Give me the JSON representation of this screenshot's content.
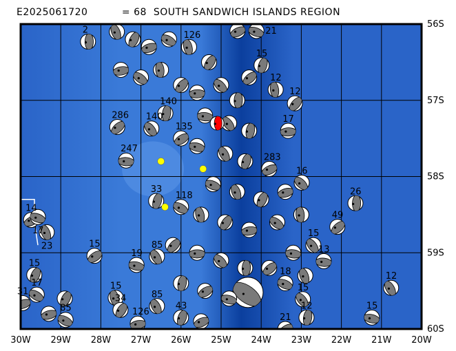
{
  "title": "E2025061720          = 68  SOUTH SANDWICH ISLANDS REGION",
  "map": {
    "lon_range": [
      -30,
      -20
    ],
    "lat_range": [
      -60,
      -56
    ],
    "x_ticks": [
      "30W",
      "29W",
      "28W",
      "27W",
      "26W",
      "25W",
      "24W",
      "23W",
      "22W",
      "21W",
      "20W"
    ],
    "y_ticks": [
      "56S",
      "57S",
      "58S",
      "59S",
      "60S"
    ],
    "colors": {
      "ocean_light": "#3a7ad8",
      "ocean_mid": "#2a64c8",
      "trench": "#0b3f9e",
      "beachball_fill": "#7a7a7a",
      "highlight": "#ff0000",
      "yellow": "#ffff00"
    }
  },
  "highlights": [
    {
      "lon": -25.1,
      "lat": -57.3,
      "type": "red-beachball"
    },
    {
      "lon": -25.45,
      "lat": -57.9,
      "type": "yellow-marker"
    },
    {
      "lon": -26.5,
      "lat": -57.8,
      "type": "yellow-marker"
    },
    {
      "lon": -26.4,
      "lat": -58.4,
      "type": "yellow-marker"
    }
  ],
  "events": [
    {
      "lon": -28.32,
      "lat": -56.23,
      "label": "2"
    },
    {
      "lon": -27.59,
      "lat": -57.35,
      "label": "286"
    },
    {
      "lon": -27.37,
      "lat": -57.79,
      "label": "247"
    },
    {
      "lon": -26.74,
      "lat": -57.37,
      "label": "140"
    },
    {
      "lon": -26.39,
      "lat": -57.17,
      "label": "140"
    },
    {
      "lon": -28.16,
      "lat": -59.04,
      "label": "15"
    },
    {
      "lon": -27.11,
      "lat": -59.16,
      "label": "19"
    },
    {
      "lon": -26.6,
      "lat": -59.05,
      "label": "85"
    },
    {
      "lon": -26.62,
      "lat": -58.32,
      "label": "33"
    },
    {
      "lon": -29.74,
      "lat": -58.57,
      "label": "14"
    },
    {
      "lon": -29.57,
      "lat": -58.53,
      "label": "17"
    },
    {
      "lon": -29.35,
      "lat": -58.73,
      "label": "23"
    },
    {
      "lon": -29.66,
      "lat": -59.29,
      "label": "15"
    },
    {
      "lon": -29.95,
      "lat": -59.66,
      "label": "31"
    },
    {
      "lon": -28.88,
      "lat": -59.88,
      "label": "85"
    },
    {
      "lon": -27.63,
      "lat": -59.59,
      "label": "15"
    },
    {
      "lon": -27.51,
      "lat": -59.75,
      "label": "34"
    },
    {
      "lon": -27.08,
      "lat": -59.93,
      "label": "126"
    },
    {
      "lon": -24.33,
      "lat": -59.52,
      "label": ""
    },
    {
      "lon": -23.64,
      "lat": -56.86,
      "label": "12"
    },
    {
      "lon": -23.16,
      "lat": -57.04,
      "label": "12"
    },
    {
      "lon": -23.33,
      "lat": -57.4,
      "label": "17"
    },
    {
      "lon": -22.99,
      "lat": -58.08,
      "label": "16"
    },
    {
      "lon": -21.65,
      "lat": -58.35,
      "label": "26"
    },
    {
      "lon": -22.1,
      "lat": -58.66,
      "label": "49"
    },
    {
      "lon": -22.44,
      "lat": -59.11,
      "label": "13"
    },
    {
      "lon": -22.96,
      "lat": -59.61,
      "label": "15"
    },
    {
      "lon": -22.87,
      "lat": -59.85,
      "label": "12"
    },
    {
      "lon": -23.4,
      "lat": -60.0,
      "label": "21"
    },
    {
      "lon": -21.24,
      "lat": -59.85,
      "label": "15"
    },
    {
      "lon": -20.76,
      "lat": -59.46,
      "label": "12"
    },
    {
      "lon": -23.99,
      "lat": -56.54,
      "label": "15"
    },
    {
      "lon": -24.59,
      "lat": -56.09,
      "label": ""
    },
    {
      "lon": -24.12,
      "lat": -56.09,
      "label": "21"
    },
    {
      "lon": -27.6,
      "lat": -56.1,
      "label": ""
    },
    {
      "lon": -27.2,
      "lat": -56.2,
      "label": ""
    },
    {
      "lon": -26.8,
      "lat": -56.3,
      "label": ""
    },
    {
      "lon": -26.3,
      "lat": -56.2,
      "label": ""
    },
    {
      "lon": -25.8,
      "lat": -56.3,
      "label": "126"
    },
    {
      "lon": -25.3,
      "lat": -56.5,
      "label": ""
    },
    {
      "lon": -27.5,
      "lat": -56.6,
      "label": ""
    },
    {
      "lon": -27.0,
      "lat": -56.7,
      "label": ""
    },
    {
      "lon": -26.5,
      "lat": -56.6,
      "label": ""
    },
    {
      "lon": -26.0,
      "lat": -56.8,
      "label": ""
    },
    {
      "lon": -25.6,
      "lat": -56.9,
      "label": ""
    },
    {
      "lon": -25.0,
      "lat": -56.8,
      "label": ""
    },
    {
      "lon": -24.6,
      "lat": -57.0,
      "label": ""
    },
    {
      "lon": -24.3,
      "lat": -56.7,
      "label": ""
    },
    {
      "lon": -25.4,
      "lat": -57.2,
      "label": ""
    },
    {
      "lon": -24.8,
      "lat": -57.3,
      "label": ""
    },
    {
      "lon": -24.3,
      "lat": -57.4,
      "label": ""
    },
    {
      "lon": -26.0,
      "lat": -57.5,
      "label": "135"
    },
    {
      "lon": -25.6,
      "lat": -57.6,
      "label": ""
    },
    {
      "lon": -24.9,
      "lat": -57.7,
      "label": ""
    },
    {
      "lon": -24.4,
      "lat": -57.8,
      "label": ""
    },
    {
      "lon": -23.8,
      "lat": -57.9,
      "label": "283"
    },
    {
      "lon": -25.2,
      "lat": -58.1,
      "label": ""
    },
    {
      "lon": -24.6,
      "lat": -58.2,
      "label": ""
    },
    {
      "lon": -24.0,
      "lat": -58.3,
      "label": ""
    },
    {
      "lon": -23.4,
      "lat": -58.2,
      "label": ""
    },
    {
      "lon": -26.0,
      "lat": -58.4,
      "label": "118"
    },
    {
      "lon": -25.5,
      "lat": -58.5,
      "label": ""
    },
    {
      "lon": -24.9,
      "lat": -58.6,
      "label": ""
    },
    {
      "lon": -24.3,
      "lat": -58.7,
      "label": ""
    },
    {
      "lon": -23.6,
      "lat": -58.6,
      "label": ""
    },
    {
      "lon": -23.0,
      "lat": -58.5,
      "label": ""
    },
    {
      "lon": -26.2,
      "lat": -58.9,
      "label": ""
    },
    {
      "lon": -25.6,
      "lat": -59.0,
      "label": ""
    },
    {
      "lon": -25.0,
      "lat": -59.1,
      "label": ""
    },
    {
      "lon": -24.4,
      "lat": -59.2,
      "label": ""
    },
    {
      "lon": -23.8,
      "lat": -59.2,
      "label": ""
    },
    {
      "lon": -23.2,
      "lat": -59.0,
      "label": ""
    },
    {
      "lon": -22.7,
      "lat": -58.9,
      "label": "15"
    },
    {
      "lon": -26.0,
      "lat": -59.4,
      "label": ""
    },
    {
      "lon": -25.4,
      "lat": -59.5,
      "label": ""
    },
    {
      "lon": -24.8,
      "lat": -59.6,
      "label": ""
    },
    {
      "lon": -26.6,
      "lat": -59.7,
      "label": "85"
    },
    {
      "lon": -26.0,
      "lat": -59.85,
      "label": "43"
    },
    {
      "lon": -25.5,
      "lat": -59.9,
      "label": ""
    },
    {
      "lon": -23.4,
      "lat": -59.4,
      "label": "18"
    },
    {
      "lon": -22.9,
      "lat": -59.3,
      "label": ""
    },
    {
      "lon": -28.9,
      "lat": -59.6,
      "label": ""
    },
    {
      "lon": -29.3,
      "lat": -59.8,
      "label": ""
    },
    {
      "lon": -29.6,
      "lat": -59.55,
      "label": "17"
    }
  ]
}
